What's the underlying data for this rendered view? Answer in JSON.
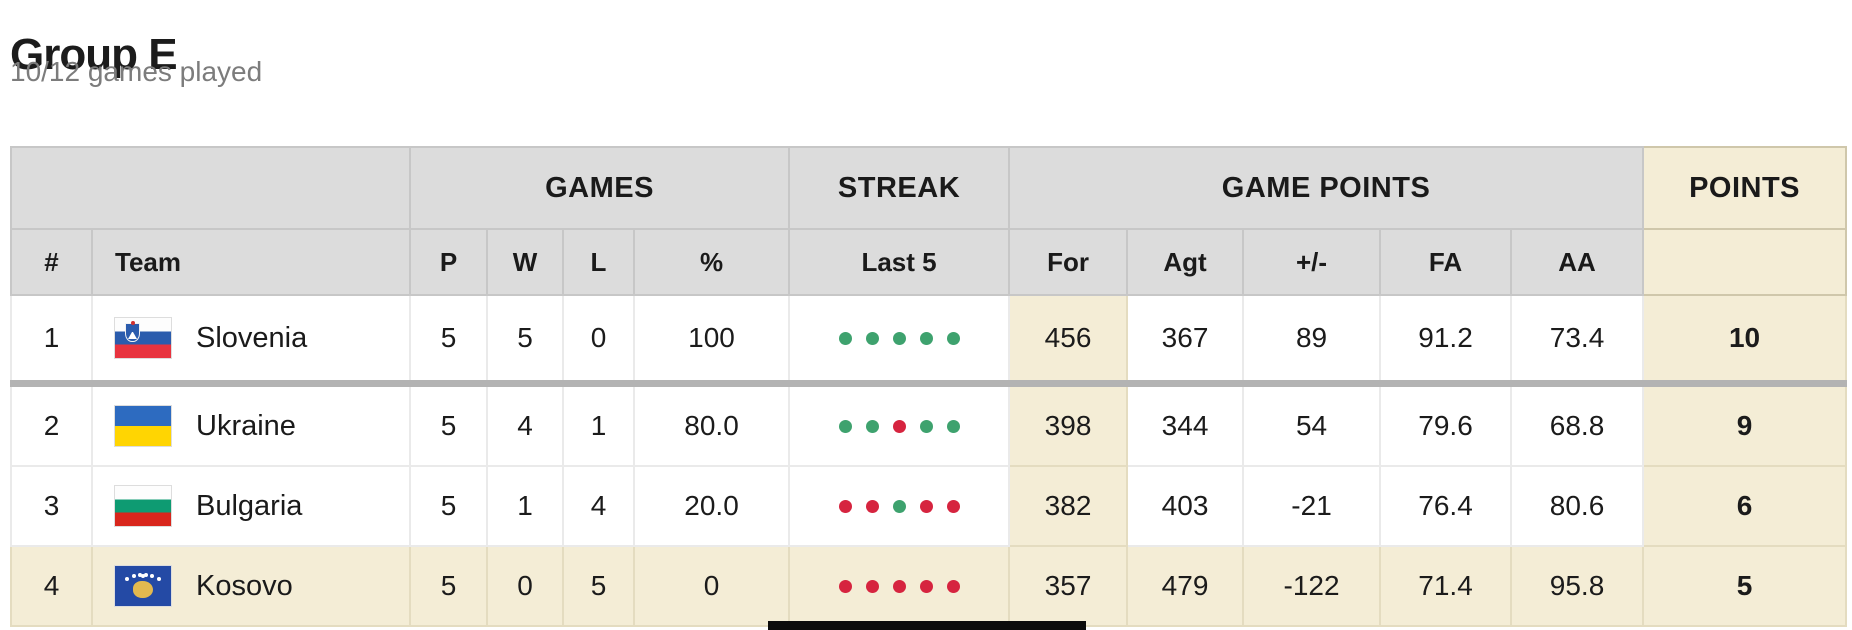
{
  "page": {
    "title": "Group E",
    "subtitle": "10/12 games played"
  },
  "table": {
    "group_headers": [
      {
        "label": ""
      },
      {
        "label": "GAMES"
      },
      {
        "label": "STREAK"
      },
      {
        "label": "GAME POINTS"
      },
      {
        "label": "POINTS"
      }
    ],
    "columns": [
      "#",
      "Team",
      "P",
      "W",
      "L",
      "%",
      "Last 5",
      "For",
      "Agt",
      "+/-",
      "FA",
      "AA",
      ""
    ],
    "rows": [
      {
        "rank": "1",
        "team": "Slovenia",
        "flag": "si",
        "p": "5",
        "w": "5",
        "l": "0",
        "pct": "100",
        "last5": [
          "W",
          "W",
          "W",
          "W",
          "W"
        ],
        "for": "456",
        "agt": "367",
        "plus_minus": "89",
        "fa": "91.2",
        "aa": "73.4",
        "points": "10",
        "highlighted": false
      },
      {
        "rank": "2",
        "team": "Ukraine",
        "flag": "ua",
        "p": "5",
        "w": "4",
        "l": "1",
        "pct": "80.0",
        "last5": [
          "W",
          "W",
          "L",
          "W",
          "W"
        ],
        "for": "398",
        "agt": "344",
        "plus_minus": "54",
        "fa": "79.6",
        "aa": "68.8",
        "points": "9",
        "highlighted": false
      },
      {
        "rank": "3",
        "team": "Bulgaria",
        "flag": "bg",
        "p": "5",
        "w": "1",
        "l": "4",
        "pct": "20.0",
        "last5": [
          "L",
          "L",
          "W",
          "L",
          "L"
        ],
        "for": "382",
        "agt": "403",
        "plus_minus": "-21",
        "fa": "76.4",
        "aa": "80.6",
        "points": "6",
        "highlighted": false
      },
      {
        "rank": "4",
        "team": "Kosovo",
        "flag": "xk",
        "p": "5",
        "w": "0",
        "l": "5",
        "pct": "0",
        "last5": [
          "L",
          "L",
          "L",
          "L",
          "L"
        ],
        "for": "357",
        "agt": "479",
        "plus_minus": "-122",
        "fa": "71.4",
        "aa": "95.8",
        "points": "5",
        "highlighted": true
      }
    ],
    "colors": {
      "win_dot": "#3ea26e",
      "loss_dot": "#d6243f",
      "beige": "#f4edd6",
      "header_gray": "#dcdcdc",
      "leader_divider": "#b3b3b3"
    }
  }
}
